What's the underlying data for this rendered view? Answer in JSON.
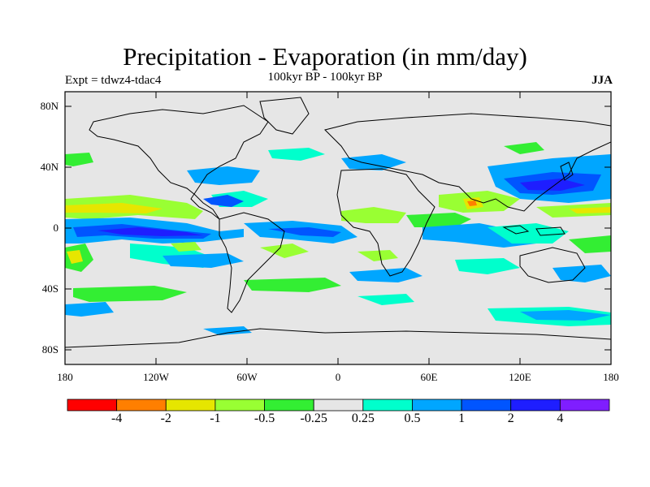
{
  "title": "Precipitation - Evaporation (in mm/day)",
  "subtitle": "100kyr BP - 100kyr BP",
  "experiment_label": "Expt = tdwz4-tdac4",
  "season_label": "JJA",
  "lat_labels": [
    "80N",
    "40N",
    "0",
    "40S",
    "80S"
  ],
  "lon_labels": [
    "180",
    "120W",
    "60W",
    "0",
    "60E",
    "120E",
    "180"
  ],
  "colorbar": {
    "colors": [
      "#ff0000",
      "#ff7f00",
      "#e6e600",
      "#99ff33",
      "#33ee33",
      "#e6e6e6",
      "#00ffcc",
      "#00a6ff",
      "#0055ff",
      "#1e1eff",
      "#7f1eff"
    ],
    "labels": [
      "-4",
      "-2",
      "-1",
      "-0.5",
      "-0.25",
      "0.25",
      "0.5",
      "1",
      "2",
      "4"
    ]
  },
  "colors": {
    "background_fill": "#e6e6e6",
    "coastline": "#000000"
  }
}
